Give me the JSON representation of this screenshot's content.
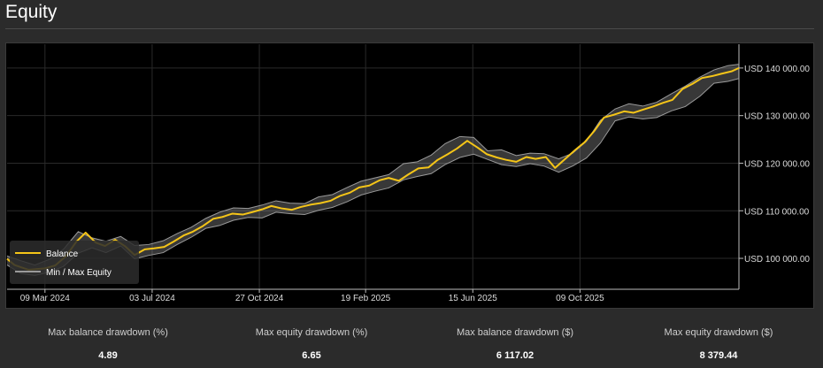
{
  "header": {
    "title": "Equity"
  },
  "chart_data": {
    "type": "line",
    "title": "",
    "x_tick_labels": [
      "09 Mar 2024",
      "03 Jul 2024",
      "27 Oct 2024",
      "19 Feb 2025",
      "15 Jun 2025",
      "09 Oct 2025"
    ],
    "y_tick_labels": [
      "USD 100 000.00",
      "USD 110 000.00",
      "USD 120 000.00",
      "USD 130 000.00",
      "USD 140 000.00"
    ],
    "y_ticks": [
      100000,
      110000,
      120000,
      130000,
      140000
    ],
    "ylim": [
      93500,
      145000
    ],
    "x_tick_dates": [
      "2024-03-09",
      "2024-07-03",
      "2024-10-27",
      "2025-02-19",
      "2025-06-15",
      "2025-10-09"
    ],
    "xlim": [
      "2024-01-28",
      "2026-03-30"
    ],
    "grid": true,
    "legend_position": "bottom-left",
    "legend": [
      "Balance",
      "Min / Max Equity"
    ],
    "series": [
      {
        "name": "Balance",
        "color": "#f5c518",
        "x": [
          "2024-01-28",
          "2024-02-05",
          "2024-02-20",
          "2024-03-09",
          "2024-03-20",
          "2024-04-01",
          "2024-04-12",
          "2024-04-22",
          "2024-05-03",
          "2024-05-13",
          "2024-05-24",
          "2024-06-04",
          "2024-06-14",
          "2024-06-25",
          "2024-07-05",
          "2024-07-16",
          "2024-07-26",
          "2024-08-06",
          "2024-08-16",
          "2024-08-27",
          "2024-09-07",
          "2024-09-17",
          "2024-09-28",
          "2024-10-09",
          "2024-10-19",
          "2024-10-30",
          "2024-11-09",
          "2024-11-20",
          "2024-12-01",
          "2024-12-11",
          "2024-12-22",
          "2025-01-01",
          "2025-01-12",
          "2025-01-22",
          "2025-02-02",
          "2025-02-12",
          "2025-02-23",
          "2025-03-06",
          "2025-03-16",
          "2025-03-27",
          "2025-04-06",
          "2025-04-17",
          "2025-04-28",
          "2025-05-08",
          "2025-05-19",
          "2025-05-29",
          "2025-06-09",
          "2025-06-20",
          "2025-06-30",
          "2025-07-11",
          "2025-07-21",
          "2025-08-01",
          "2025-08-12",
          "2025-08-22",
          "2025-09-02",
          "2025-09-12",
          "2025-09-23",
          "2025-10-04",
          "2025-10-14",
          "2025-10-25",
          "2025-11-04",
          "2025-11-15",
          "2025-11-26",
          "2025-12-06",
          "2025-12-17",
          "2025-12-27",
          "2026-01-07",
          "2026-01-17",
          "2026-01-28",
          "2026-02-08",
          "2026-02-18",
          "2026-03-01",
          "2026-03-11",
          "2026-03-22",
          "2026-03-30"
        ],
        "values": [
          99900,
          98600,
          97600,
          97900,
          98500,
          100500,
          103500,
          105400,
          103300,
          102600,
          103900,
          102500,
          100700,
          101900,
          102100,
          102400,
          103500,
          104800,
          105600,
          106800,
          108300,
          108700,
          109400,
          109200,
          109700,
          110300,
          111000,
          110500,
          110200,
          110800,
          111300,
          111600,
          112100,
          113100,
          113800,
          114900,
          115300,
          116400,
          116900,
          116300,
          117600,
          118900,
          119100,
          120700,
          121900,
          123100,
          124700,
          123300,
          121900,
          121200,
          120700,
          120300,
          121300,
          120900,
          121300,
          119000,
          120900,
          122800,
          124400,
          126900,
          129600,
          130200,
          130900,
          130600,
          131300,
          131900,
          132700,
          133300,
          135600,
          136700,
          137900,
          138300,
          138800,
          139300,
          140000
        ]
      },
      {
        "name": "Min / Max Equity",
        "color": "#9a9a9a",
        "x": [
          "2024-01-28",
          "2024-02-12",
          "2024-02-27",
          "2024-03-14",
          "2024-03-29",
          "2024-04-14",
          "2024-04-29",
          "2024-05-14",
          "2024-05-30",
          "2024-06-14",
          "2024-06-29",
          "2024-07-15",
          "2024-07-30",
          "2024-08-14",
          "2024-08-30",
          "2024-09-14",
          "2024-09-29",
          "2024-10-15",
          "2024-10-30",
          "2024-11-14",
          "2024-11-29",
          "2024-12-15",
          "2024-12-30",
          "2025-01-14",
          "2025-01-30",
          "2025-02-14",
          "2025-03-01",
          "2025-03-16",
          "2025-04-01",
          "2025-04-16",
          "2025-05-01",
          "2025-05-16",
          "2025-06-01",
          "2025-06-16",
          "2025-07-01",
          "2025-07-16",
          "2025-08-01",
          "2025-08-16",
          "2025-08-31",
          "2025-09-16",
          "2025-10-01",
          "2025-10-16",
          "2025-10-31",
          "2025-11-16",
          "2025-12-01",
          "2025-12-16",
          "2025-12-31",
          "2026-01-16",
          "2026-01-31",
          "2026-02-16",
          "2026-03-03",
          "2026-03-18",
          "2026-03-30"
        ],
        "min": [
          98600,
          96800,
          96400,
          97100,
          98300,
          101100,
          102200,
          101200,
          102600,
          99900,
          100600,
          101200,
          102900,
          104400,
          106300,
          106900,
          108000,
          108600,
          108500,
          109700,
          109400,
          109200,
          110100,
          110700,
          111900,
          113300,
          114100,
          114800,
          116500,
          117200,
          117800,
          119700,
          121200,
          121900,
          120800,
          119700,
          119300,
          119900,
          119400,
          118100,
          119400,
          121100,
          124200,
          128900,
          129700,
          129300,
          129600,
          131000,
          131900,
          134100,
          136800,
          137200,
          137800
        ],
        "max": [
          100500,
          99500,
          98600,
          99800,
          101900,
          105600,
          104300,
          103600,
          104600,
          102700,
          102900,
          103700,
          105200,
          106500,
          108400,
          109700,
          110600,
          110500,
          111200,
          112100,
          111600,
          111500,
          112900,
          113400,
          114900,
          116200,
          116900,
          117600,
          119900,
          120300,
          121700,
          124100,
          125600,
          125400,
          122600,
          122800,
          121600,
          122100,
          122000,
          120900,
          122100,
          124600,
          129000,
          131400,
          132500,
          132000,
          132800,
          134600,
          136200,
          138100,
          139600,
          140500,
          140800
        ]
      }
    ]
  },
  "stats": [
    {
      "label": "Max balance drawdown (%)",
      "value": "4.89"
    },
    {
      "label": "Max equity drawdown (%)",
      "value": "6.65"
    },
    {
      "label": "Max balance drawdown ($)",
      "value": "6 117.02"
    },
    {
      "label": "Max equity drawdown ($)",
      "value": "8 379.44"
    }
  ]
}
